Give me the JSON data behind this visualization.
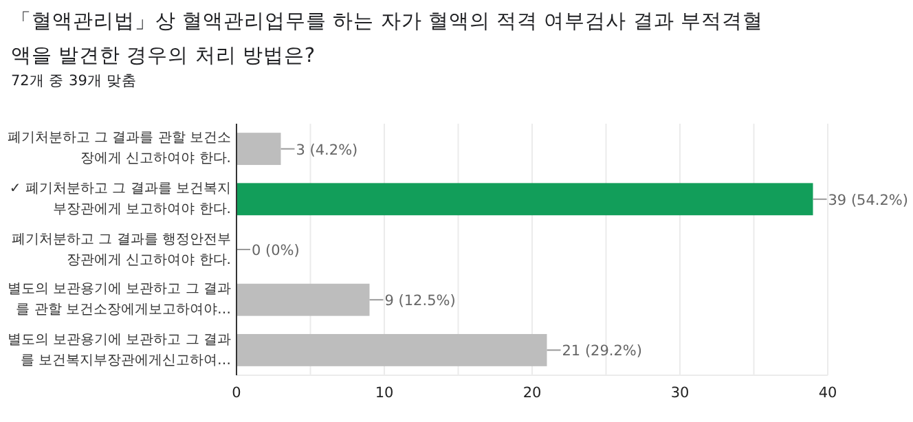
{
  "chart_data": {
    "type": "bar",
    "orientation": "horizontal",
    "title": "「혈액관리법」상 혈액관리업무를 하는 자가 혈액의 적격 여부검사 결과 부적격혈액을 발견한 경우의 처리 방법은?",
    "subtitle": "72개 중 39개 맞춤",
    "categories": [
      "폐기처분하고 그 결과를 관할 보건소장에게 신고하여야 한다.",
      "✓ 폐기처분하고 그 결과를 보건복지부장관에게 보고하여야 한다.",
      "폐기처분하고 그 결과를 행정안전부장관에게 신고하여야 한다.",
      "별도의 보관용기에 보관하고 그 결과를 관할 보건소장에게보고하여야…",
      "별도의 보관용기에 보관하고 그 결과를 보건복지부장관에게신고하여…"
    ],
    "values": [
      3,
      39,
      0,
      9,
      21
    ],
    "colors": [
      "#bdbdbd",
      "#129e5a",
      "#bdbdbd",
      "#bdbdbd",
      "#bdbdbd"
    ],
    "value_labels": [
      "3 (4.2%)",
      "39 (54.2%)",
      "0 (0%)",
      "9 (12.5%)",
      "21 (29.2%)"
    ],
    "xlim": [
      0,
      40
    ],
    "xticks": [
      0,
      {
        "value": 5,
        "label": null
      },
      10,
      {
        "value": 15,
        "label": null
      },
      20,
      {
        "value": 25,
        "label": null
      },
      30,
      {
        "value": 35,
        "label": null
      },
      40
    ],
    "grid": "x"
  }
}
